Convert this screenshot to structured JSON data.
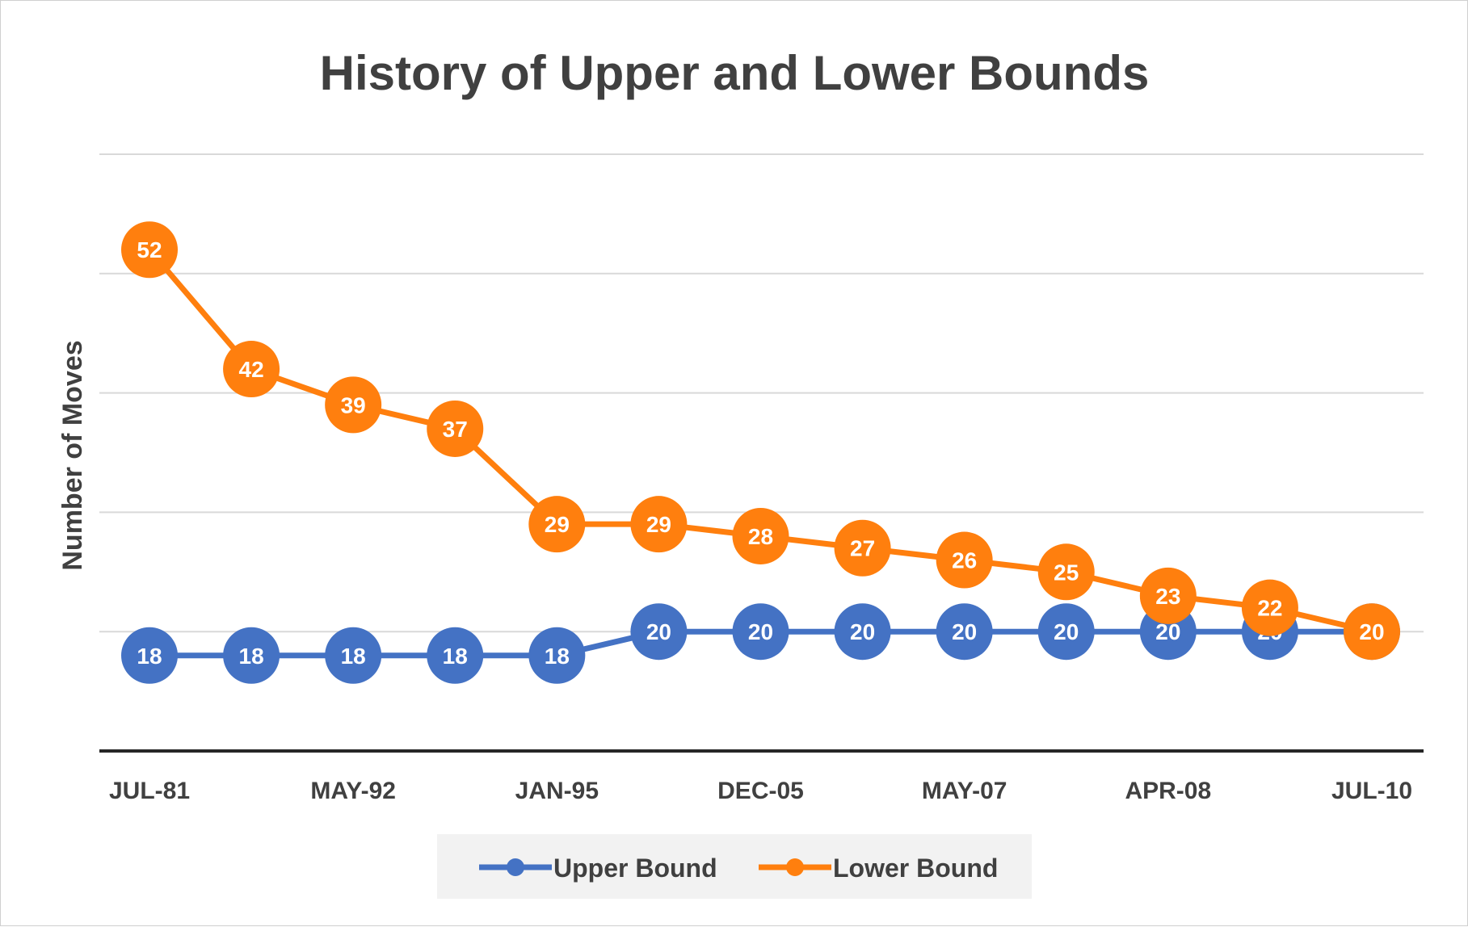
{
  "chart_data": {
    "type": "line",
    "title": "History of Upper and Lower Bounds",
    "ylabel": "Number of Moves",
    "xlabel": "",
    "ylim": [
      10,
      60
    ],
    "grid": true,
    "legend_position": "bottom",
    "x_tick_labels": [
      "JUL-81",
      "MAY-92",
      "JAN-95",
      "DEC-05",
      "MAY-07",
      "APR-08",
      "JUL-10"
    ],
    "x_tick_label_points": [
      0,
      2,
      4,
      6,
      8,
      10,
      12
    ],
    "point_count": 13,
    "series": [
      {
        "name": "Upper Bound",
        "color": "#4472C4",
        "values": [
          18,
          18,
          18,
          18,
          18,
          20,
          20,
          20,
          20,
          20,
          20,
          20,
          20
        ]
      },
      {
        "name": "Lower Bound",
        "color": "#FF7F0E",
        "values": [
          52,
          42,
          39,
          37,
          29,
          29,
          28,
          27,
          26,
          25,
          23,
          22,
          20
        ]
      }
    ]
  }
}
